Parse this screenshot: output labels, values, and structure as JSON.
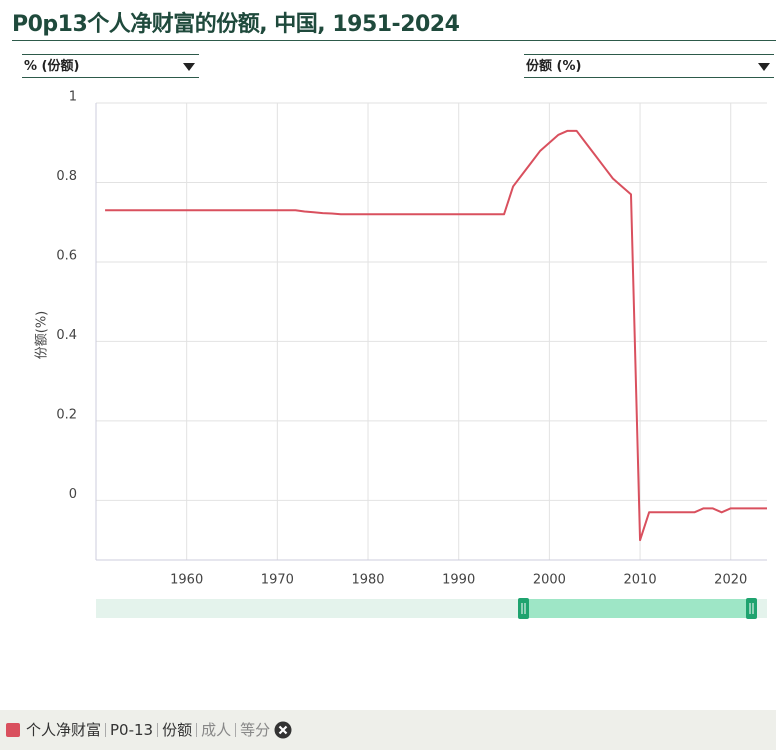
{
  "chart_data": {
    "type": "line",
    "title": "P0p13个人净财富的份额, 中国, 1951-2024",
    "left_selector": "% (份额)",
    "right_selector": "份额 (%)",
    "y_label": "份额(%)",
    "x": [
      1951,
      1952,
      1953,
      1954,
      1955,
      1956,
      1957,
      1958,
      1959,
      1960,
      1961,
      1962,
      1963,
      1964,
      1965,
      1966,
      1967,
      1968,
      1969,
      1970,
      1971,
      1972,
      1973,
      1974,
      1975,
      1976,
      1977,
      1978,
      1979,
      1980,
      1981,
      1982,
      1983,
      1984,
      1985,
      1986,
      1987,
      1988,
      1989,
      1990,
      1991,
      1992,
      1993,
      1994,
      1995,
      1996,
      1997,
      1998,
      1999,
      2000,
      2001,
      2002,
      2003,
      2004,
      2005,
      2006,
      2007,
      2008,
      2009,
      2010,
      2011,
      2012,
      2013,
      2014,
      2015,
      2016,
      2017,
      2018,
      2019,
      2020,
      2021,
      2022,
      2023,
      2024
    ],
    "values": [
      0.73,
      0.73,
      0.73,
      0.73,
      0.73,
      0.73,
      0.73,
      0.73,
      0.73,
      0.73,
      0.73,
      0.73,
      0.73,
      0.73,
      0.73,
      0.73,
      0.73,
      0.73,
      0.73,
      0.73,
      0.73,
      0.73,
      0.727,
      0.725,
      0.723,
      0.722,
      0.72,
      0.72,
      0.72,
      0.72,
      0.72,
      0.72,
      0.72,
      0.72,
      0.72,
      0.72,
      0.72,
      0.72,
      0.72,
      0.72,
      0.72,
      0.72,
      0.72,
      0.72,
      0.72,
      0.79,
      0.82,
      0.85,
      0.88,
      0.9,
      0.92,
      0.93,
      0.93,
      0.9,
      0.87,
      0.84,
      0.81,
      0.79,
      0.77,
      -0.1,
      -0.03,
      -0.03,
      -0.03,
      -0.03,
      -0.03,
      -0.03,
      -0.02,
      -0.02,
      -0.03,
      -0.02,
      -0.02,
      -0.02,
      -0.02,
      -0.02
    ],
    "color": "#d9505e",
    "xlim": [
      1950,
      2024
    ],
    "ylim": [
      -0.15,
      1
    ],
    "xticks": [
      1960,
      1970,
      1980,
      1990,
      2000,
      2010,
      2020
    ],
    "yticks": [
      0,
      0.2,
      0.4,
      0.6,
      0.8,
      1
    ],
    "grid": true,
    "legend_items": [
      "个人净财富",
      "P0-13",
      "份额",
      "成人",
      "等分"
    ]
  }
}
